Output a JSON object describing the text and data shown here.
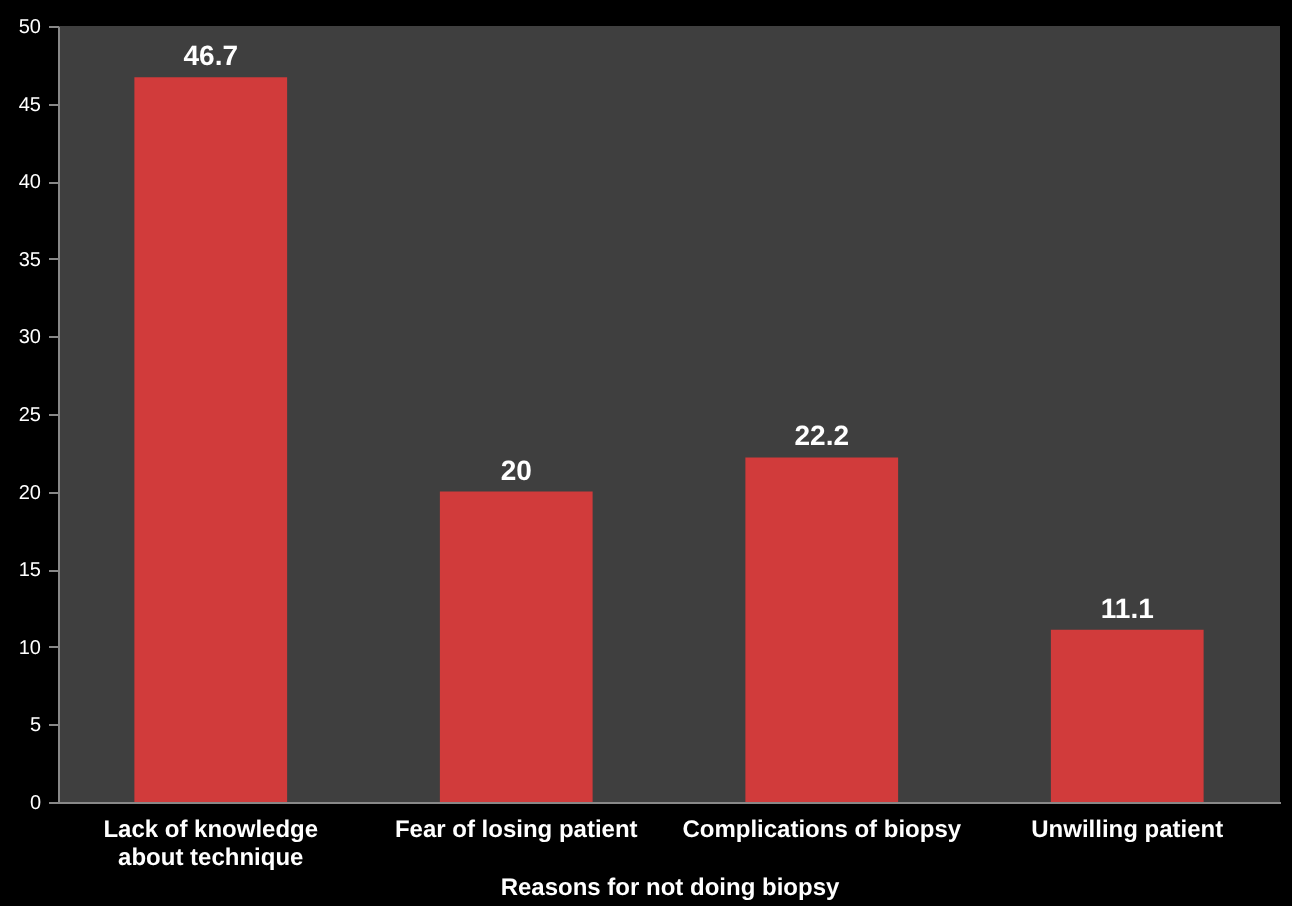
{
  "chart_data": {
    "type": "bar",
    "xlabel": "Reasons for not doing biopsy",
    "categories": [
      "Lack of knowledge about technique",
      "Fear of losing patient",
      "Complications of biopsy",
      "Unwilling patient"
    ],
    "values": [
      46.7,
      20,
      22.2,
      11.1
    ],
    "color": "#d13b3b",
    "ylim": [
      0,
      50
    ],
    "yticks": [
      0,
      5,
      10,
      15,
      20,
      25,
      30,
      35,
      40,
      45,
      50
    ],
    "grid": false,
    "data_labels": true
  }
}
